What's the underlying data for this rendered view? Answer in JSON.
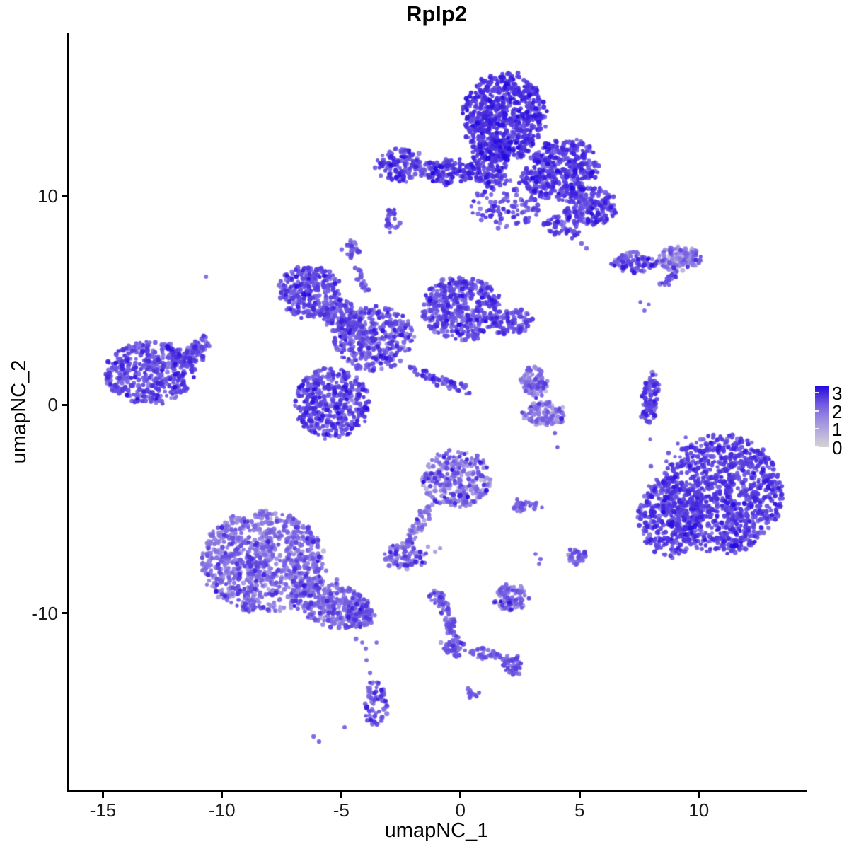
{
  "title": "Rplp2",
  "axes": {
    "x": {
      "label": "umapNC_1",
      "ticks": [
        -15,
        -10,
        -5,
        0,
        5,
        10
      ],
      "range": [
        -16.48,
        14.49
      ]
    },
    "y": {
      "label": "umapNC_2",
      "ticks": [
        10,
        0,
        -10
      ],
      "range": [
        -18.51,
        17.8
      ]
    }
  },
  "legend": {
    "tick_values": [
      3,
      2,
      1,
      0
    ],
    "domain": [
      0,
      3.4
    ],
    "color_low": "#d3d3d3",
    "color_high": "#1c06ee"
  },
  "chart_data": {
    "type": "scatter",
    "title": "Rplp2",
    "xlabel": "umapNC_1",
    "ylabel": "umapNC_2",
    "xlim": [
      -16.48,
      14.49
    ],
    "ylim": [
      -18.51,
      17.8
    ],
    "grid": false,
    "legend_position": "right",
    "color_scale": {
      "domain": [
        0,
        3.4
      ],
      "stops": [
        [
          0.0,
          "#d3d3d3"
        ],
        [
          0.12,
          "#c7c2d8"
        ],
        [
          0.3,
          "#afa4de"
        ],
        [
          0.5,
          "#9683e2"
        ],
        [
          0.7,
          "#715ae2"
        ],
        [
          0.85,
          "#4c30dd"
        ],
        [
          1.0,
          "#2008e0"
        ]
      ]
    },
    "point_radius_px": 2.9,
    "clusters": [
      {
        "name": "top-head",
        "x": 1.82,
        "y": 13.8,
        "sx": 1.72,
        "sy": 2.1,
        "rot": 0,
        "n": 700,
        "expr": 2.75,
        "spread": 0.3
      },
      {
        "name": "top-band-left-lobe",
        "x": -2.54,
        "y": 11.49,
        "sx": 0.89,
        "sy": 0.81,
        "rot": 0,
        "n": 130,
        "expr": 2.5,
        "spread": 0.4
      },
      {
        "name": "top-band-left",
        "x": -0.55,
        "y": 11.15,
        "sx": 1.13,
        "sy": 0.61,
        "rot": 0,
        "n": 140,
        "expr": 2.55,
        "spread": 0.35
      },
      {
        "name": "top-neck",
        "x": 1.23,
        "y": 11.76,
        "sx": 0.77,
        "sy": 1.36,
        "rot": 0,
        "n": 190,
        "expr": 2.7,
        "spread": 0.3
      },
      {
        "name": "top-right-wing",
        "x": 4.19,
        "y": 11.25,
        "sx": 1.63,
        "sy": 1.42,
        "rot": -15,
        "n": 430,
        "expr": 2.6,
        "spread": 0.35
      },
      {
        "name": "top-right-wing-low",
        "x": 5.41,
        "y": 9.49,
        "sx": 1.13,
        "sy": 0.95,
        "rot": 0,
        "n": 230,
        "expr": 2.55,
        "spread": 0.35
      },
      {
        "name": "top-below-head-sparse",
        "x": 1.91,
        "y": 9.63,
        "sx": 1.48,
        "sy": 1.19,
        "rot": 0,
        "n": 115,
        "expr": 2.5,
        "spread": 0.4
      },
      {
        "name": "top-tail",
        "x": 4.28,
        "y": 8.47,
        "sx": 0.83,
        "sy": 0.47,
        "rot": 15,
        "n": 50,
        "expr": 2.5,
        "spread": 0.35
      },
      {
        "name": "top-comma",
        "x": -2.9,
        "y": 8.85,
        "sx": 0.3,
        "sy": 0.58,
        "rot": 0,
        "n": 26,
        "expr": 2.45,
        "spread": 0.3
      },
      {
        "name": "upper-right-strip-left",
        "x": 7.28,
        "y": 6.81,
        "sx": 0.95,
        "sy": 0.44,
        "rot": 0,
        "n": 105,
        "expr": 2.2,
        "spread": 0.5
      },
      {
        "name": "upper-right-strip-right",
        "x": 9.21,
        "y": 6.98,
        "sx": 0.92,
        "sy": 0.61,
        "rot": 0,
        "n": 125,
        "expr": 1.8,
        "spread": 0.6
      },
      {
        "name": "upper-right-dash",
        "x": 8.73,
        "y": 6.0,
        "sx": 0.42,
        "sy": 0.24,
        "rot": -32,
        "n": 18,
        "expr": 2.5,
        "spread": 0.3
      },
      {
        "name": "mid-left-lobe",
        "x": -6.34,
        "y": 5.39,
        "sx": 1.31,
        "sy": 1.22,
        "rot": 0,
        "n": 330,
        "expr": 2.4,
        "spread": 0.4
      },
      {
        "name": "mid-small-top-blob",
        "x": -4.56,
        "y": 7.46,
        "sx": 0.39,
        "sy": 0.41,
        "rot": 0,
        "n": 32,
        "expr": 2.25,
        "spread": 0.3
      },
      {
        "name": "mid-central-mass",
        "x": -3.64,
        "y": 3.19,
        "sx": 1.66,
        "sy": 1.56,
        "rot": 0,
        "n": 390,
        "expr": 2.3,
        "spread": 0.45
      },
      {
        "name": "mid-ne-lobe",
        "x": 0.04,
        "y": 4.61,
        "sx": 1.66,
        "sy": 1.53,
        "rot": 0,
        "n": 440,
        "expr": 2.45,
        "spread": 0.4
      },
      {
        "name": "mid-right-arm",
        "x": 2.15,
        "y": 3.93,
        "sx": 0.89,
        "sy": 0.58,
        "rot": -10,
        "n": 95,
        "expr": 2.4,
        "spread": 0.35
      },
      {
        "name": "mid-sw-lobe",
        "x": -5.42,
        "y": 0.07,
        "sx": 1.57,
        "sy": 1.69,
        "rot": 0,
        "n": 440,
        "expr": 2.5,
        "spread": 0.4
      },
      {
        "name": "mid-se-thin-arm",
        "x": -0.91,
        "y": 1.19,
        "sx": 1.48,
        "sy": 0.24,
        "rot": 22,
        "n": 58,
        "expr": 2.5,
        "spread": 0.3
      },
      {
        "name": "mid-bridge",
        "x": -5.01,
        "y": 4.24,
        "sx": 0.77,
        "sy": 0.75,
        "rot": 0,
        "n": 115,
        "expr": 2.35,
        "spread": 0.35
      },
      {
        "name": "mid-diag-trail",
        "x": -4.2,
        "y": 6.07,
        "sx": 0.68,
        "sy": 0.17,
        "rot": 67,
        "n": 18,
        "expr": 2.3,
        "spread": 0.3
      },
      {
        "name": "left-fish-body",
        "x": -13.02,
        "y": 1.53,
        "sx": 1.9,
        "sy": 1.49,
        "rot": 0,
        "n": 440,
        "expr": 2.45,
        "spread": 0.4
      },
      {
        "name": "left-fish-tip",
        "x": -11.36,
        "y": 2.34,
        "sx": 0.77,
        "sy": 0.47,
        "rot": -20,
        "n": 70,
        "expr": 2.4,
        "spread": 0.35
      },
      {
        "name": "left-fish-arm",
        "x": -10.91,
        "y": 2.88,
        "sx": 0.47,
        "sy": 0.31,
        "rot": -35,
        "n": 30,
        "expr": 2.35,
        "spread": 0.3
      },
      {
        "name": "right-crescent",
        "x": 8.02,
        "y": 0.34,
        "sx": 0.39,
        "sy": 1.22,
        "rot": 5,
        "n": 88,
        "expr": 2.5,
        "spread": 0.4
      },
      {
        "name": "right-big-main",
        "x": 10.96,
        "y": -4.27,
        "sx": 2.55,
        "sy": 2.85,
        "rot": 0,
        "n": 1050,
        "expr": 2.6,
        "spread": 0.3
      },
      {
        "name": "right-big-left-lobe",
        "x": 8.82,
        "y": -5.36,
        "sx": 1.36,
        "sy": 1.9,
        "rot": 0,
        "n": 330,
        "expr": 2.55,
        "spread": 0.35
      },
      {
        "name": "mid-bottom-head",
        "x": -0.2,
        "y": -3.56,
        "sx": 1.48,
        "sy": 1.36,
        "rot": 0,
        "n": 300,
        "expr": 1.8,
        "spread": 0.65
      },
      {
        "name": "mid-bottom-trail",
        "x": -1.74,
        "y": -5.73,
        "sx": 0.24,
        "sy": 1.15,
        "rot": 35,
        "n": 46,
        "expr": 1.95,
        "spread": 0.5
      },
      {
        "name": "mid-bottom-end-blob",
        "x": -2.31,
        "y": -7.25,
        "sx": 0.86,
        "sy": 0.64,
        "rot": 0,
        "n": 95,
        "expr": 1.9,
        "spread": 0.6
      },
      {
        "name": "small-dash-row",
        "x": 2.56,
        "y": -4.88,
        "sx": 0.56,
        "sy": 0.27,
        "rot": 0,
        "n": 26,
        "expr": 2.25,
        "spread": 0.3
      },
      {
        "name": "bottom-left-main",
        "x": -8.27,
        "y": -7.49,
        "sx": 2.58,
        "sy": 2.44,
        "rot": 0,
        "n": 950,
        "expr": 1.95,
        "spread": 0.5
      },
      {
        "name": "bottom-left-tail",
        "x": -5.42,
        "y": -9.53,
        "sx": 1.72,
        "sy": 1.08,
        "rot": 19,
        "n": 310,
        "expr": 2.05,
        "spread": 0.45
      },
      {
        "name": "bottom-left-tail-tip",
        "x": -4.2,
        "y": -10.14,
        "sx": 0.59,
        "sy": 0.51,
        "rot": 0,
        "n": 72,
        "expr": 2.2,
        "spread": 0.4
      },
      {
        "name": "bottom-small-column",
        "x": -3.55,
        "y": -14.34,
        "sx": 0.47,
        "sy": 1.08,
        "rot": 0,
        "n": 75,
        "expr": 2.3,
        "spread": 0.4
      },
      {
        "name": "bottom-trail-top-blob",
        "x": -0.94,
        "y": -9.25,
        "sx": 0.33,
        "sy": 0.37,
        "rot": 0,
        "n": 25,
        "expr": 2.25,
        "spread": 0.3
      },
      {
        "name": "bottom-trail-diag",
        "x": -0.44,
        "y": -10.47,
        "sx": 0.21,
        "sy": 1.02,
        "rot": -23,
        "n": 42,
        "expr": 2.25,
        "spread": 0.3
      },
      {
        "name": "bottom-trail-junction",
        "x": -0.23,
        "y": -11.66,
        "sx": 0.45,
        "sy": 0.44,
        "rot": 0,
        "n": 45,
        "expr": 2.3,
        "spread": 0.3
      },
      {
        "name": "bottom-trail-arm",
        "x": 0.99,
        "y": -11.93,
        "sx": 0.89,
        "sy": 0.24,
        "rot": 13,
        "n": 36,
        "expr": 2.25,
        "spread": 0.3
      },
      {
        "name": "bottom-trail-end-blob",
        "x": 2.15,
        "y": -12.51,
        "sx": 0.42,
        "sy": 0.44,
        "rot": 0,
        "n": 42,
        "expr": 2.35,
        "spread": 0.3
      },
      {
        "name": "bottom-small-dash",
        "x": 0.51,
        "y": -13.83,
        "sx": 0.27,
        "sy": 0.21,
        "rot": 35,
        "n": 10,
        "expr": 2.35,
        "spread": 0.2
      },
      {
        "name": "bottom-triangle",
        "x": 2.12,
        "y": -9.25,
        "sx": 0.74,
        "sy": 0.61,
        "rot": 0,
        "n": 95,
        "expr": 1.95,
        "spread": 0.55
      },
      {
        "name": "bottom-right-small-blob",
        "x": 4.88,
        "y": -7.25,
        "sx": 0.42,
        "sy": 0.41,
        "rot": 0,
        "n": 32,
        "expr": 2.15,
        "spread": 0.3
      },
      {
        "name": "center-right-c-upper",
        "x": 3.12,
        "y": 1.05,
        "sx": 0.56,
        "sy": 0.71,
        "rot": 0,
        "n": 78,
        "expr": 1.85,
        "spread": 0.55
      },
      {
        "name": "center-right-c-lower",
        "x": 3.54,
        "y": -0.44,
        "sx": 0.98,
        "sy": 0.58,
        "rot": 0,
        "n": 112,
        "expr": 1.75,
        "spread": 0.55
      }
    ],
    "singles": [
      [
        -3.58,
        11.36,
        2.4
      ],
      [
        -3.34,
        10.98,
        2.3
      ],
      [
        5.08,
        7.73,
        2.3
      ],
      [
        5.29,
        7.49,
        2.2
      ],
      [
        -10.67,
        6.14,
        2.2
      ],
      [
        7.55,
        4.92,
        2.4
      ],
      [
        7.9,
        4.81,
        2.3
      ],
      [
        7.72,
        4.51,
        2.3
      ],
      [
        2.86,
        1.76,
        2.5
      ],
      [
        3.84,
        -0.54,
        2.4
      ],
      [
        3.96,
        -1.36,
        2.4
      ],
      [
        4.07,
        -2.03,
        2.5
      ],
      [
        7.9,
        -0.85,
        2.4
      ],
      [
        7.96,
        -1.66,
        2.4
      ],
      [
        8.73,
        -2.31,
        2.5
      ],
      [
        8.64,
        -2.71,
        2.5
      ],
      [
        9.33,
        -2.71,
        2.5
      ],
      [
        8.23,
        -3.59,
        2.5
      ],
      [
        8.67,
        -3.39,
        2.5
      ],
      [
        8.97,
        -3.08,
        2.5
      ],
      [
        9.12,
        -1.86,
        2.5
      ],
      [
        9.45,
        -1.56,
        2.4
      ],
      [
        7.99,
        -2.95,
        2.4
      ],
      [
        3.18,
        -4.71,
        2.4
      ],
      [
        3.42,
        -4.92,
        2.4
      ],
      [
        3.15,
        -7.15,
        2.3
      ],
      [
        3.36,
        -7.39,
        2.3
      ],
      [
        3.3,
        -7.63,
        2.3
      ],
      [
        -2.66,
        -7.39,
        1.9
      ],
      [
        -2.51,
        -7.63,
        1.9
      ],
      [
        -1.36,
        -6.81,
        1.2
      ],
      [
        -1.06,
        -7.05,
        1.1
      ],
      [
        -0.85,
        -6.88,
        1.3
      ],
      [
        -0.82,
        -11.39,
        1.2
      ],
      [
        -4.38,
        -11.22,
        2.2
      ],
      [
        -4.12,
        -11.39,
        2.2
      ],
      [
        -3.97,
        -11.69,
        2.2
      ],
      [
        -3.52,
        -11.39,
        2.2
      ],
      [
        -3.94,
        -12.24,
        2.2
      ],
      [
        -3.79,
        -12.85,
        2.2
      ],
      [
        -4.86,
        -15.46,
        2.3
      ],
      [
        -6.16,
        -15.9,
        2.3
      ],
      [
        -5.93,
        -16.14,
        2.3
      ]
    ]
  }
}
